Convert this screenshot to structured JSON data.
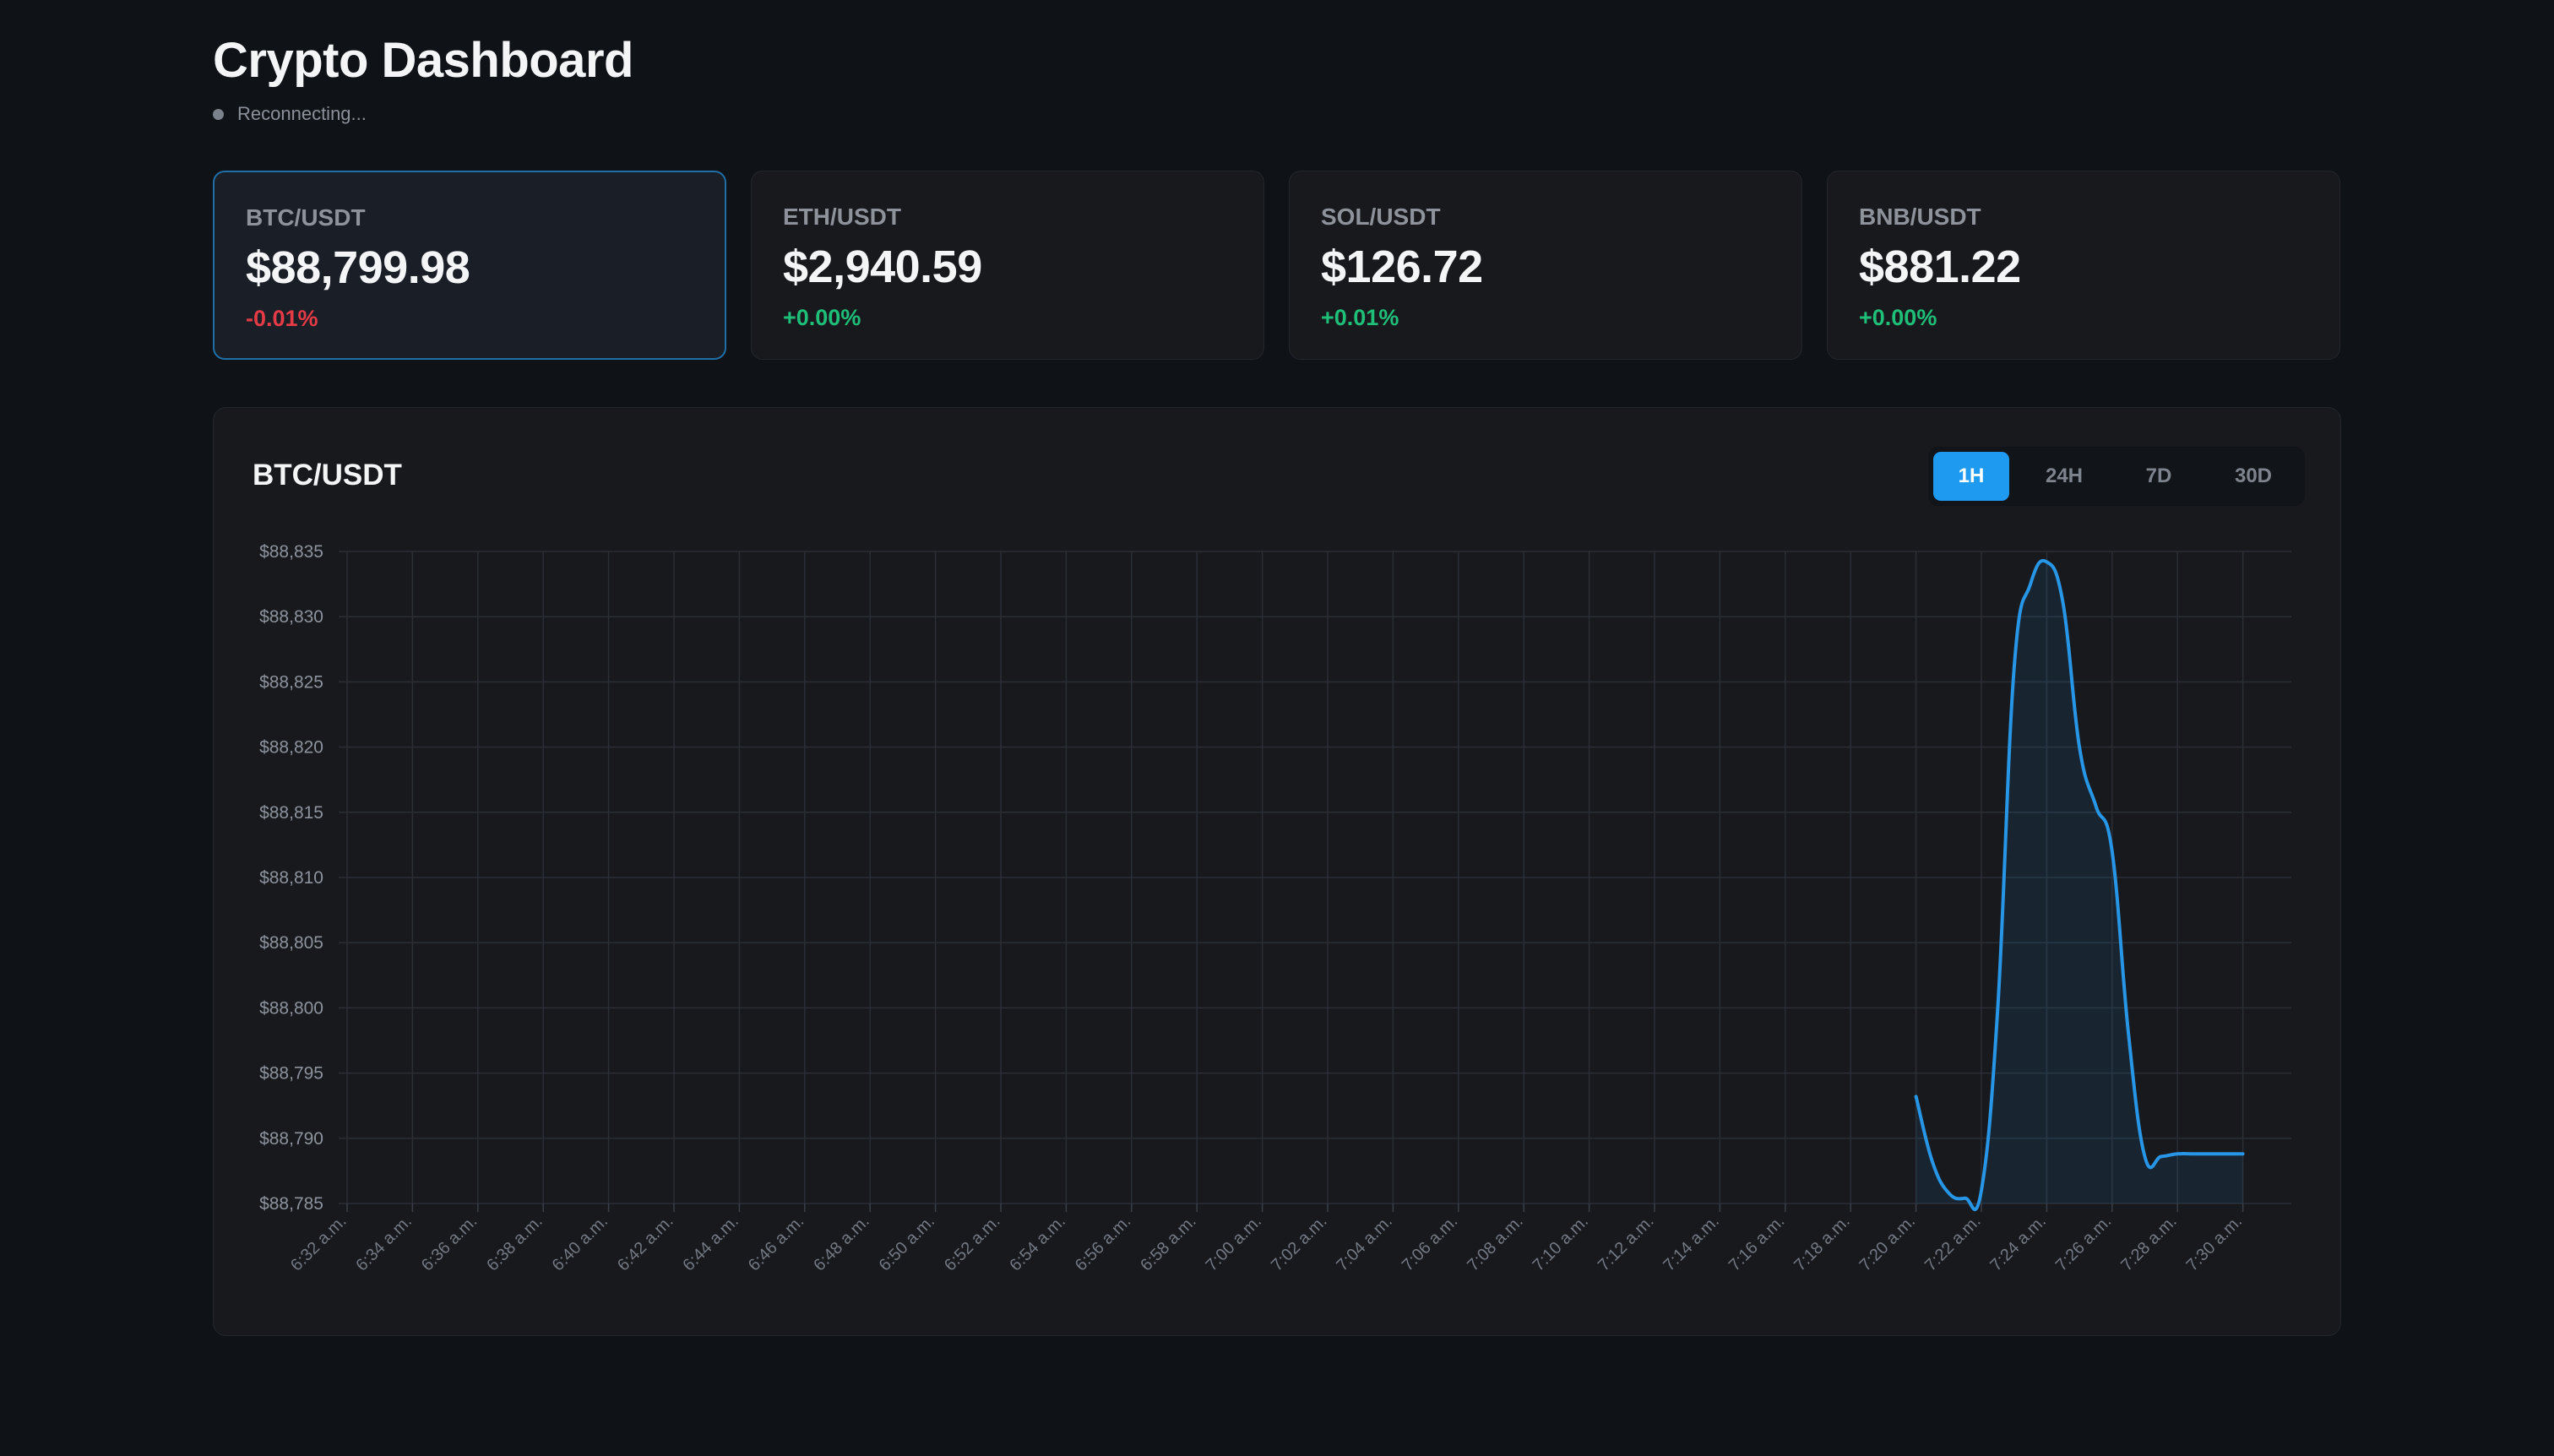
{
  "header": {
    "title": "Crypto Dashboard",
    "status_text": "Reconnecting..."
  },
  "tickers": [
    {
      "pair": "BTC/USDT",
      "price": "$88,799.98",
      "change": "-0.01%",
      "direction": "down",
      "selected": true
    },
    {
      "pair": "ETH/USDT",
      "price": "$2,940.59",
      "change": "+0.00%",
      "direction": "up",
      "selected": false
    },
    {
      "pair": "SOL/USDT",
      "price": "$126.72",
      "change": "+0.01%",
      "direction": "up",
      "selected": false
    },
    {
      "pair": "BNB/USDT",
      "price": "$881.22",
      "change": "+0.00%",
      "direction": "up",
      "selected": false
    }
  ],
  "chart_panel": {
    "title": "BTC/USDT",
    "ranges": [
      {
        "label": "1H",
        "active": true
      },
      {
        "label": "24H",
        "active": false
      },
      {
        "label": "7D",
        "active": false
      },
      {
        "label": "30D",
        "active": false
      }
    ]
  },
  "colors": {
    "accent": "#1e9af0",
    "line": "#2896e6",
    "positive": "#1fbf7a",
    "negative": "#e53b46",
    "selected_border": "#1f6fa8"
  },
  "chart_data": {
    "type": "area",
    "ylim": [
      88785,
      88835
    ],
    "yticks": [
      "$88,785",
      "$88,790",
      "$88,795",
      "$88,800",
      "$88,805",
      "$88,810",
      "$88,815",
      "$88,820",
      "$88,825",
      "$88,830",
      "$88,835"
    ],
    "ytick_values": [
      88785,
      88790,
      88795,
      88800,
      88805,
      88810,
      88815,
      88820,
      88825,
      88830,
      88835
    ],
    "xticks": [
      "6:32 a.m.",
      "6:34 a.m.",
      "6:36 a.m.",
      "6:38 a.m.",
      "6:40 a.m.",
      "6:42 a.m.",
      "6:44 a.m.",
      "6:46 a.m.",
      "6:48 a.m.",
      "6:50 a.m.",
      "6:52 a.m.",
      "6:54 a.m.",
      "6:56 a.m.",
      "6:58 a.m.",
      "7:00 a.m.",
      "7:02 a.m.",
      "7:04 a.m.",
      "7:06 a.m.",
      "7:08 a.m.",
      "7:10 a.m.",
      "7:12 a.m.",
      "7:14 a.m.",
      "7:16 a.m.",
      "7:18 a.m.",
      "7:20 a.m.",
      "7:22 a.m.",
      "7:24 a.m.",
      "7:26 a.m.",
      "7:28 a.m.",
      "7:30 a.m."
    ],
    "grid": true,
    "legend": "none",
    "series": [
      {
        "x": [
          "7:20 a.m.",
          "7:20:30 a.m.",
          "7:21 a.m.",
          "7:21:30 a.m.",
          "7:22 a.m.",
          "7:22:30 a.m.",
          "7:23 a.m.",
          "7:23:30 a.m.",
          "7:24 a.m.",
          "7:24:30 a.m.",
          "7:25 a.m.",
          "7:25:30 a.m.",
          "7:26 a.m.",
          "7:26:30 a.m.",
          "7:27 a.m.",
          "7:27:30 a.m.",
          "7:28 a.m.",
          "7:28:30 a.m.",
          "7:29 a.m.",
          "7:29:30 a.m.",
          "7:30 a.m."
        ],
        "y": [
          88793.2,
          88788.2,
          88785.8,
          88785.4,
          88786.0,
          88800.0,
          88826.0,
          88832.5,
          88834.2,
          88831.0,
          88820.0,
          88815.5,
          88812.0,
          88798.0,
          88788.6,
          88788.6,
          88788.8,
          88788.8,
          88788.8,
          88788.8,
          88788.8
        ]
      }
    ]
  }
}
